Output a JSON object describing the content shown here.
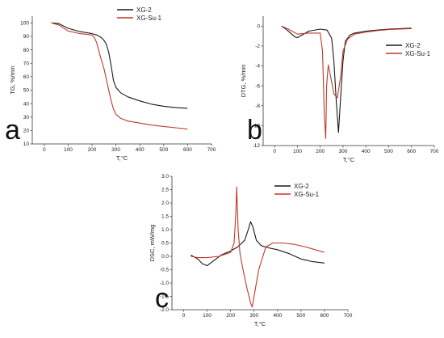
{
  "colors": {
    "xg2": "#1a1a1a",
    "xgsu1": "#c0392b"
  },
  "chart_data": [
    {
      "type": "line",
      "panel_label": "a",
      "xlabel": "T,°C",
      "ylabel": "TG, %/min",
      "xlim": [
        -50,
        700
      ],
      "ylim": [
        10,
        105
      ],
      "xticks": [
        0,
        100,
        200,
        300,
        400,
        500,
        600,
        700
      ],
      "yticks": [
        10,
        20,
        30,
        40,
        50,
        60,
        70,
        80,
        90,
        100
      ],
      "legend_position": "top-center",
      "series": [
        {
          "name": "XG-2",
          "color_key": "xg2",
          "x": [
            30,
            60,
            100,
            150,
            200,
            220,
            240,
            250,
            260,
            270,
            280,
            290,
            300,
            320,
            350,
            400,
            450,
            500,
            550,
            600
          ],
          "y": [
            100,
            99.5,
            96,
            93.5,
            92,
            91,
            89,
            87,
            84,
            78,
            68,
            57,
            52,
            48,
            45,
            42,
            39.5,
            38,
            37,
            36.5
          ]
        },
        {
          "name": "XG-Su-1",
          "color_key": "xgsu1",
          "x": [
            30,
            60,
            100,
            150,
            200,
            210,
            220,
            230,
            240,
            250,
            260,
            270,
            280,
            290,
            300,
            320,
            350,
            400,
            450,
            500,
            550,
            600
          ],
          "y": [
            100,
            98.5,
            94,
            92,
            91,
            89,
            85,
            78,
            72,
            66,
            58,
            50,
            42,
            36,
            32,
            29,
            27,
            25.5,
            24,
            23,
            22,
            21
          ]
        }
      ]
    },
    {
      "type": "line",
      "panel_label": "b",
      "xlabel": "T,°C",
      "ylabel": "DTG, %/min",
      "xlim": [
        -50,
        700
      ],
      "ylim": [
        -12,
        1
      ],
      "xticks": [
        0,
        100,
        200,
        300,
        400,
        500,
        600,
        700
      ],
      "yticks": [
        0,
        -2,
        -4,
        -6,
        -8,
        -10,
        -12
      ],
      "legend_position": "right",
      "series": [
        {
          "name": "XG-2",
          "color_key": "xg2",
          "x": [
            30,
            50,
            70,
            90,
            100,
            120,
            150,
            200,
            230,
            250,
            260,
            270,
            280,
            290,
            300,
            310,
            330,
            350,
            400,
            450,
            500,
            550,
            600
          ],
          "y": [
            0,
            -0.3,
            -0.7,
            -1.1,
            -1.15,
            -0.9,
            -0.5,
            -0.3,
            -0.4,
            -1.2,
            -3.5,
            -7.5,
            -10.7,
            -7,
            -3.5,
            -1.5,
            -0.9,
            -0.7,
            -0.5,
            -0.4,
            -0.3,
            -0.25,
            -0.2
          ]
        },
        {
          "name": "XG-Su-1",
          "color_key": "xgsu1",
          "x": [
            30,
            60,
            100,
            150,
            200,
            210,
            218,
            224,
            228,
            235,
            245,
            260,
            275,
            290,
            300,
            320,
            350,
            400,
            450,
            500,
            550,
            600
          ],
          "y": [
            0,
            -0.3,
            -0.8,
            -0.7,
            -0.7,
            -2.5,
            -9,
            -11.3,
            -6,
            -3.9,
            -5,
            -6.8,
            -7.2,
            -5,
            -2.5,
            -1.3,
            -0.8,
            -0.6,
            -0.45,
            -0.35,
            -0.3,
            -0.25
          ]
        }
      ]
    },
    {
      "type": "line",
      "panel_label": "c",
      "xlabel": "T,°C",
      "ylabel": "DSC, mW/mg",
      "xlim": [
        -50,
        700
      ],
      "ylim": [
        -2.0,
        3.0
      ],
      "xticks": [
        0,
        100,
        200,
        300,
        400,
        500,
        600,
        700
      ],
      "yticks": [
        3.0,
        2.5,
        2.0,
        1.5,
        1.0,
        0.5,
        0.0,
        -0.5,
        -1.0,
        -1.5,
        -2.0
      ],
      "legend_position": "top-right",
      "series": [
        {
          "name": "XG-2",
          "color_key": "xg2",
          "x": [
            30,
            60,
            80,
            100,
            130,
            160,
            200,
            230,
            260,
            275,
            285,
            295,
            310,
            330,
            370,
            400,
            450,
            500,
            550,
            600
          ],
          "y": [
            0.05,
            -0.1,
            -0.28,
            -0.35,
            -0.15,
            0.05,
            0.2,
            0.35,
            0.6,
            1.0,
            1.3,
            1.1,
            0.6,
            0.4,
            0.3,
            0.25,
            0.1,
            -0.1,
            -0.2,
            -0.25
          ]
        },
        {
          "name": "XG-Su-1",
          "color_key": "xgsu1",
          "x": [
            30,
            60,
            100,
            150,
            200,
            215,
            222,
            226,
            232,
            240,
            255,
            270,
            285,
            292,
            300,
            320,
            350,
            380,
            420,
            470,
            520,
            560,
            600
          ],
          "y": [
            0.0,
            -0.05,
            -0.05,
            0.0,
            0.15,
            0.5,
            1.6,
            2.6,
            1.0,
            0.1,
            -0.6,
            -1.2,
            -1.75,
            -1.9,
            -1.5,
            -0.5,
            0.35,
            0.5,
            0.5,
            0.45,
            0.35,
            0.25,
            0.15
          ]
        }
      ]
    }
  ]
}
